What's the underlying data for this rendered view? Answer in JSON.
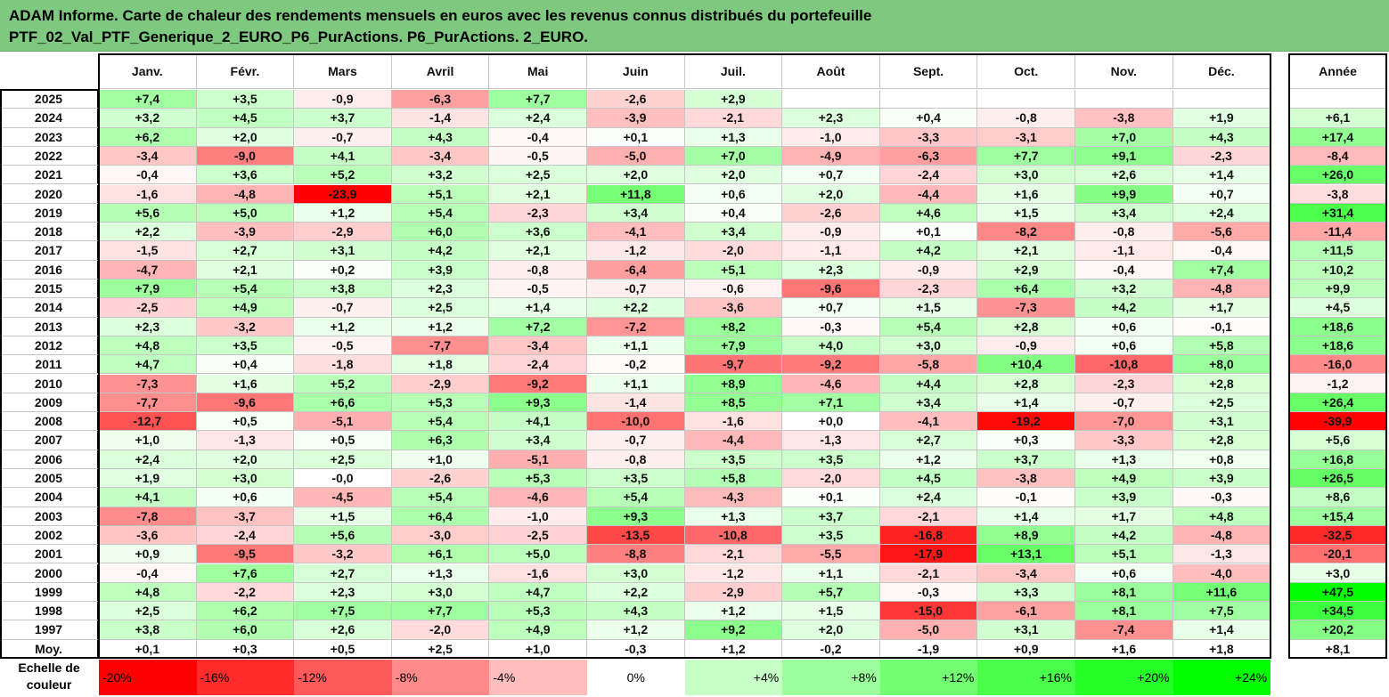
{
  "title": {
    "line1": "ADAM Informe. Carte de chaleur des rendements mensuels en euros avec les revenus connus distribués du portefeuille",
    "line2": "PTF_02_Val_PTF_Generique_2_EURO_P6_PurActions. P6_PurActions. 2_EURO."
  },
  "chart_data": {
    "type": "heatmap",
    "columns": [
      "Janv.",
      "Févr.",
      "Mars",
      "Avril",
      "Mai",
      "Juin",
      "Juil.",
      "Août",
      "Sept.",
      "Oct.",
      "Nov.",
      "Déc."
    ],
    "annual_column": "Année",
    "rows": [
      {
        "year": "2025",
        "months": [
          "+7,4",
          "+3,5",
          "-0,9",
          "-6,3",
          "+7,7",
          "-2,6",
          "+2,9",
          "",
          "",
          "",
          "",
          ""
        ],
        "annual": ""
      },
      {
        "year": "2024",
        "months": [
          "+3,2",
          "+4,5",
          "+3,7",
          "-1,4",
          "+2,4",
          "-3,9",
          "-2,1",
          "+2,3",
          "+0,4",
          "-0,8",
          "-3,8",
          "+1,9"
        ],
        "annual": "+6,1"
      },
      {
        "year": "2023",
        "months": [
          "+6,2",
          "+2,0",
          "-0,7",
          "+4,3",
          "-0,4",
          "+0,1",
          "+1,3",
          "-1,0",
          "-3,3",
          "-3,1",
          "+7,0",
          "+4,3"
        ],
        "annual": "+17,4"
      },
      {
        "year": "2022",
        "months": [
          "-3,4",
          "-9,0",
          "+4,1",
          "-3,4",
          "-0,5",
          "-5,0",
          "+7,0",
          "-4,9",
          "-6,3",
          "+7,7",
          "+9,1",
          "-2,3"
        ],
        "annual": "-8,4"
      },
      {
        "year": "2021",
        "months": [
          "-0,4",
          "+3,6",
          "+5,2",
          "+3,2",
          "+2,5",
          "+2,0",
          "+2,0",
          "+0,7",
          "-2,4",
          "+3,0",
          "+2,6",
          "+1,4"
        ],
        "annual": "+26,0"
      },
      {
        "year": "2020",
        "months": [
          "-1,6",
          "-4,8",
          "-23,9",
          "+5,1",
          "+2,1",
          "+11,8",
          "+0,6",
          "+2,0",
          "-4,4",
          "+1,6",
          "+9,9",
          "+0,7"
        ],
        "annual": "-3,8"
      },
      {
        "year": "2019",
        "months": [
          "+5,6",
          "+5,0",
          "+1,2",
          "+5,4",
          "-2,3",
          "+3,4",
          "+0,4",
          "-2,6",
          "+4,6",
          "+1,5",
          "+3,4",
          "+2,4"
        ],
        "annual": "+31,4"
      },
      {
        "year": "2018",
        "months": [
          "+2,2",
          "-3,9",
          "-2,9",
          "+6,0",
          "+3,6",
          "-4,1",
          "+3,4",
          "-0,9",
          "+0,1",
          "-8,2",
          "-0,8",
          "-5,6"
        ],
        "annual": "-11,4"
      },
      {
        "year": "2017",
        "months": [
          "-1,5",
          "+2,7",
          "+3,1",
          "+4,2",
          "+2,1",
          "-1,2",
          "-2,0",
          "-1,1",
          "+4,2",
          "+2,1",
          "-1,1",
          "-0,4"
        ],
        "annual": "+11,5"
      },
      {
        "year": "2016",
        "months": [
          "-4,7",
          "+2,1",
          "+0,2",
          "+3,9",
          "-0,8",
          "-6,4",
          "+5,1",
          "+2,3",
          "-0,9",
          "+2,9",
          "-0,4",
          "+7,4"
        ],
        "annual": "+10,2"
      },
      {
        "year": "2015",
        "months": [
          "+7,9",
          "+5,4",
          "+3,8",
          "+2,3",
          "-0,5",
          "-0,7",
          "-0,6",
          "-9,6",
          "-2,3",
          "+6,4",
          "+3,2",
          "-4,8"
        ],
        "annual": "+9,9"
      },
      {
        "year": "2014",
        "months": [
          "-2,5",
          "+4,9",
          "-0,7",
          "+2,5",
          "+1,4",
          "+2,2",
          "-3,6",
          "+0,7",
          "+1,5",
          "-7,3",
          "+4,2",
          "+1,7"
        ],
        "annual": "+4,5"
      },
      {
        "year": "2013",
        "months": [
          "+2,3",
          "-3,2",
          "+1,2",
          "+1,2",
          "+7,2",
          "-7,2",
          "+8,2",
          "-0,3",
          "+5,4",
          "+2,8",
          "+0,6",
          "-0,1"
        ],
        "annual": "+18,6"
      },
      {
        "year": "2012",
        "months": [
          "+4,8",
          "+3,5",
          "-0,5",
          "-7,7",
          "-3,4",
          "+1,1",
          "+7,9",
          "+4,0",
          "+3,0",
          "-0,9",
          "+0,6",
          "+5,8"
        ],
        "annual": "+18,6"
      },
      {
        "year": "2011",
        "months": [
          "+4,7",
          "+0,4",
          "-1,8",
          "+1,8",
          "-2,4",
          "-0,2",
          "-9,7",
          "-9,2",
          "-5,8",
          "+10,4",
          "-10,8",
          "+8,0"
        ],
        "annual": "-16,0"
      },
      {
        "year": "2010",
        "months": [
          "-7,3",
          "+1,6",
          "+5,2",
          "-2,9",
          "-9,2",
          "+1,1",
          "+8,9",
          "-4,6",
          "+4,4",
          "+2,8",
          "-2,3",
          "+2,8"
        ],
        "annual": "-1,2"
      },
      {
        "year": "2009",
        "months": [
          "-7,7",
          "-9,6",
          "+6,6",
          "+5,3",
          "+9,3",
          "-1,4",
          "+8,5",
          "+7,1",
          "+3,4",
          "+1,4",
          "-0,7",
          "+2,5"
        ],
        "annual": "+26,4"
      },
      {
        "year": "2008",
        "months": [
          "-12,7",
          "+0,5",
          "-5,1",
          "+5,4",
          "+4,1",
          "-10,0",
          "-1,6",
          "+0,0",
          "-4,1",
          "-19,2",
          "-7,0",
          "+3,1"
        ],
        "annual": "-39,9"
      },
      {
        "year": "2007",
        "months": [
          "+1,0",
          "-1,3",
          "+0,5",
          "+6,3",
          "+3,4",
          "-0,7",
          "-4,4",
          "-1,3",
          "+2,7",
          "+0,3",
          "-3,3",
          "+2,8"
        ],
        "annual": "+5,6"
      },
      {
        "year": "2006",
        "months": [
          "+2,4",
          "+2,0",
          "+2,5",
          "+1,0",
          "-5,1",
          "-0,8",
          "+3,5",
          "+3,5",
          "+1,2",
          "+3,7",
          "+1,3",
          "+0,8"
        ],
        "annual": "+16,8"
      },
      {
        "year": "2005",
        "months": [
          "+1,9",
          "+3,0",
          "-0,0",
          "-2,6",
          "+5,3",
          "+3,5",
          "+5,8",
          "-2,0",
          "+4,5",
          "-3,8",
          "+4,9",
          "+3,9"
        ],
        "annual": "+26,5"
      },
      {
        "year": "2004",
        "months": [
          "+4,1",
          "+0,6",
          "-4,5",
          "+5,4",
          "-4,6",
          "+5,4",
          "-4,3",
          "+0,1",
          "+2,4",
          "-0,1",
          "+3,9",
          "-0,3"
        ],
        "annual": "+8,6"
      },
      {
        "year": "2003",
        "months": [
          "-7,8",
          "-3,7",
          "+1,5",
          "+6,4",
          "-1,0",
          "+9,3",
          "+1,3",
          "+3,7",
          "-2,1",
          "+1,4",
          "+1,7",
          "+4,8"
        ],
        "annual": "+15,4"
      },
      {
        "year": "2002",
        "months": [
          "-3,6",
          "-2,4",
          "+5,6",
          "-3,0",
          "-2,5",
          "-13,5",
          "-10,8",
          "+3,5",
          "-16,8",
          "+8,9",
          "+4,2",
          "-4,8"
        ],
        "annual": "-32,5"
      },
      {
        "year": "2001",
        "months": [
          "+0,9",
          "-9,5",
          "-3,2",
          "+6,1",
          "+5,0",
          "-8,8",
          "-2,1",
          "-5,5",
          "-17,9",
          "+13,1",
          "+5,1",
          "-1,3"
        ],
        "annual": "-20,1"
      },
      {
        "year": "2000",
        "months": [
          "-0,4",
          "+7,6",
          "+2,7",
          "+1,3",
          "-1,6",
          "+3,0",
          "-1,2",
          "+1,1",
          "-2,1",
          "-3,4",
          "+0,6",
          "-4,0"
        ],
        "annual": "+3,0"
      },
      {
        "year": "1999",
        "months": [
          "+4,8",
          "-2,2",
          "+2,3",
          "+3,0",
          "+4,7",
          "+2,2",
          "-2,9",
          "+5,7",
          "-0,3",
          "+3,3",
          "+8,1",
          "+11,6"
        ],
        "annual": "+47,5"
      },
      {
        "year": "1998",
        "months": [
          "+2,5",
          "+6,2",
          "+7,5",
          "+7,7",
          "+5,3",
          "+4,3",
          "+1,2",
          "+1,5",
          "-15,0",
          "-6,1",
          "+8,1",
          "+7,5"
        ],
        "annual": "+34,5"
      },
      {
        "year": "1997",
        "months": [
          "+3,8",
          "+6,0",
          "+2,6",
          "-2,0",
          "+4,9",
          "+1,2",
          "+9,2",
          "+2,0",
          "-5,0",
          "+3,1",
          "-7,4",
          "+1,4"
        ],
        "annual": "+20,2"
      }
    ],
    "average_row": {
      "label": "Moy.",
      "months": [
        "+0,1",
        "+0,3",
        "+0,5",
        "+2,5",
        "+1,0",
        "-0,3",
        "+1,2",
        "-0,2",
        "-1,9",
        "+0,9",
        "+1,6",
        "+1,8"
      ],
      "annual": "+8,1"
    },
    "legend": {
      "label": "Echelle de couleur",
      "steps": [
        "-20%",
        "-16%",
        "-12%",
        "-8%",
        "-4%",
        "0%",
        "+4%",
        "+8%",
        "+12%",
        "+16%",
        "+20%",
        "+24%"
      ]
    },
    "colors": {
      "negative_max": "#ff0000",
      "positive_max": "#00ff00",
      "neutral": "#ffffff",
      "title_bg": "#7ec97f"
    }
  }
}
